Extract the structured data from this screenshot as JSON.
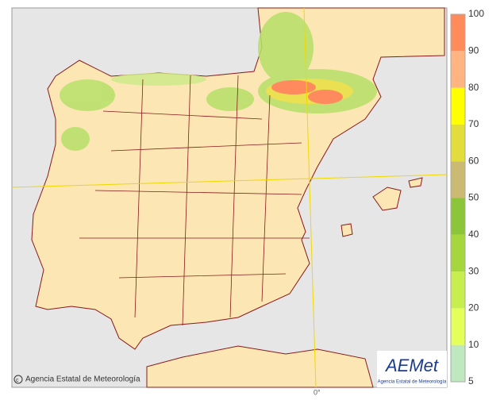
{
  "map": {
    "credit": "Agencia Estatal de Meteorología",
    "meridian_label": "0°",
    "logo": {
      "name": "AEMet",
      "subtitle": "Agencia Estatal de Meteorología"
    }
  },
  "legend": {
    "ticks": [
      5,
      10,
      20,
      30,
      40,
      50,
      60,
      70,
      80,
      90,
      100
    ],
    "colors": [
      "#bfe8bf",
      "#e4ff5a",
      "#c6ee4e",
      "#a6d63e",
      "#8cc43a",
      "#cbbb72",
      "#e2dc3c",
      "#ffff00",
      "#ffb482",
      "#ff8a5a",
      "#ff6a40"
    ]
  }
}
